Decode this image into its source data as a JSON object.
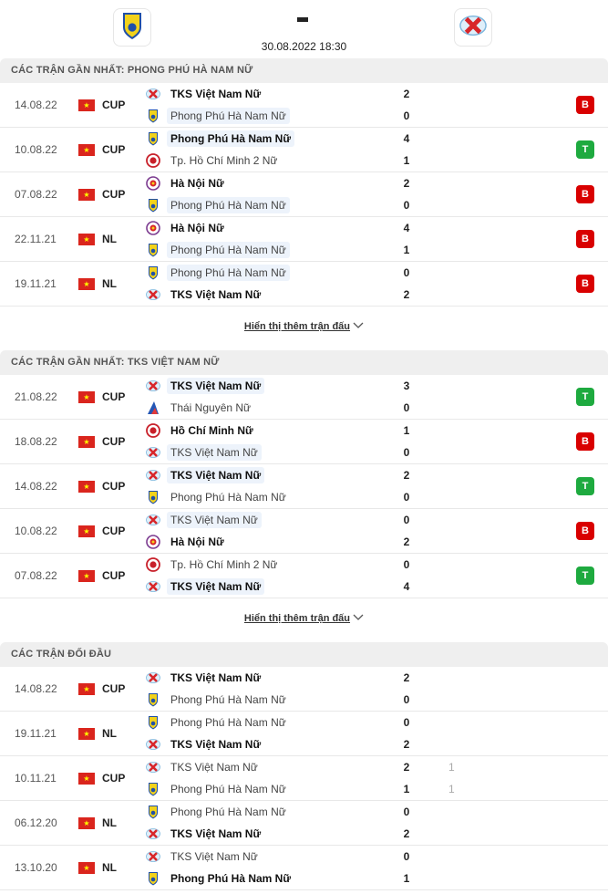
{
  "header": {
    "home_logo": "phong-phu-ha-nam-logo",
    "away_logo": "tks-viet-nam-logo",
    "score": "-",
    "datetime": "30.08.2022 18:30"
  },
  "colors": {
    "loss": "#d90000",
    "win": "#1eaa3f",
    "highlight": "#edf3fb"
  },
  "sections": [
    {
      "title": "CÁC TRẬN GẦN NHẤT: PHONG PHÚ HÀ NAM NỮ",
      "more": "Hiển thị thêm trận đấu",
      "rows": [
        {
          "date": "14.08.22",
          "comp": "CUP",
          "home": {
            "name": "TKS Việt Nam Nữ",
            "logo": "tks",
            "score": "2",
            "win": true
          },
          "away": {
            "name": "Phong Phú Hà Nam Nữ",
            "logo": "pp",
            "score": "0",
            "hl": true
          },
          "result": "B"
        },
        {
          "date": "10.08.22",
          "comp": "CUP",
          "home": {
            "name": "Phong Phú Hà Nam Nữ",
            "logo": "pp",
            "score": "4",
            "win": true,
            "hl": true
          },
          "away": {
            "name": "Tp. Hồ Chí Minh 2 Nữ",
            "logo": "hcm",
            "score": "1"
          },
          "result": "T"
        },
        {
          "date": "07.08.22",
          "comp": "CUP",
          "home": {
            "name": "Hà Nội Nữ",
            "logo": "hn",
            "score": "2",
            "win": true
          },
          "away": {
            "name": "Phong Phú Hà Nam Nữ",
            "logo": "pp",
            "score": "0",
            "hl": true
          },
          "result": "B"
        },
        {
          "date": "22.11.21",
          "comp": "NL",
          "home": {
            "name": "Hà Nội Nữ",
            "logo": "hn",
            "score": "4",
            "win": true
          },
          "away": {
            "name": "Phong Phú Hà Nam Nữ",
            "logo": "pp",
            "score": "1",
            "hl": true
          },
          "result": "B"
        },
        {
          "date": "19.11.21",
          "comp": "NL",
          "home": {
            "name": "Phong Phú Hà Nam Nữ",
            "logo": "pp",
            "score": "0",
            "hl": true
          },
          "away": {
            "name": "TKS Việt Nam Nữ",
            "logo": "tks",
            "score": "2",
            "win": true
          },
          "result": "B"
        }
      ]
    },
    {
      "title": "CÁC TRẬN GẦN NHẤT: TKS VIỆT NAM NỮ",
      "more": "Hiển thị thêm trận đấu",
      "rows": [
        {
          "date": "21.08.22",
          "comp": "CUP",
          "home": {
            "name": "TKS Việt Nam Nữ",
            "logo": "tks",
            "score": "3",
            "win": true,
            "hl": true
          },
          "away": {
            "name": "Thái Nguyên Nữ",
            "logo": "tn",
            "score": "0"
          },
          "result": "T"
        },
        {
          "date": "18.08.22",
          "comp": "CUP",
          "home": {
            "name": "Hồ Chí Minh Nữ",
            "logo": "hcm",
            "score": "1",
            "win": true
          },
          "away": {
            "name": "TKS Việt Nam Nữ",
            "logo": "tks",
            "score": "0",
            "hl": true
          },
          "result": "B"
        },
        {
          "date": "14.08.22",
          "comp": "CUP",
          "home": {
            "name": "TKS Việt Nam Nữ",
            "logo": "tks",
            "score": "2",
            "win": true,
            "hl": true
          },
          "away": {
            "name": "Phong Phú Hà Nam Nữ",
            "logo": "pp",
            "score": "0"
          },
          "result": "T"
        },
        {
          "date": "10.08.22",
          "comp": "CUP",
          "home": {
            "name": "TKS Việt Nam Nữ",
            "logo": "tks",
            "score": "0",
            "hl": true
          },
          "away": {
            "name": "Hà Nội Nữ",
            "logo": "hn",
            "score": "2",
            "win": true
          },
          "result": "B"
        },
        {
          "date": "07.08.22",
          "comp": "CUP",
          "home": {
            "name": "Tp. Hồ Chí Minh 2 Nữ",
            "logo": "hcm",
            "score": "0"
          },
          "away": {
            "name": "TKS Việt Nam Nữ",
            "logo": "tks",
            "score": "4",
            "win": true,
            "hl": true
          },
          "result": "T"
        }
      ]
    },
    {
      "title": "CÁC TRẬN ĐỐI ĐẦU",
      "rows": [
        {
          "date": "14.08.22",
          "comp": "CUP",
          "home": {
            "name": "TKS Việt Nam Nữ",
            "logo": "tks",
            "score": "2",
            "win": true
          },
          "away": {
            "name": "Phong Phú Hà Nam Nữ",
            "logo": "pp",
            "score": "0"
          }
        },
        {
          "date": "19.11.21",
          "comp": "NL",
          "home": {
            "name": "Phong Phú Hà Nam Nữ",
            "logo": "pp",
            "score": "0"
          },
          "away": {
            "name": "TKS Việt Nam Nữ",
            "logo": "tks",
            "score": "2",
            "win": true
          }
        },
        {
          "date": "10.11.21",
          "comp": "CUP",
          "home": {
            "name": "TKS Việt Nam Nữ",
            "logo": "tks",
            "score": "2",
            "extra": "1"
          },
          "away": {
            "name": "Phong Phú Hà Nam Nữ",
            "logo": "pp",
            "score": "1",
            "extra": "1"
          }
        },
        {
          "date": "06.12.20",
          "comp": "NL",
          "home": {
            "name": "Phong Phú Hà Nam Nữ",
            "logo": "pp",
            "score": "0"
          },
          "away": {
            "name": "TKS Việt Nam Nữ",
            "logo": "tks",
            "score": "2",
            "win": true
          }
        },
        {
          "date": "13.10.20",
          "comp": "NL",
          "home": {
            "name": "TKS Việt Nam Nữ",
            "logo": "tks",
            "score": "0"
          },
          "away": {
            "name": "Phong Phú Hà Nam Nữ",
            "logo": "pp",
            "score": "1",
            "win": true
          }
        }
      ]
    }
  ]
}
